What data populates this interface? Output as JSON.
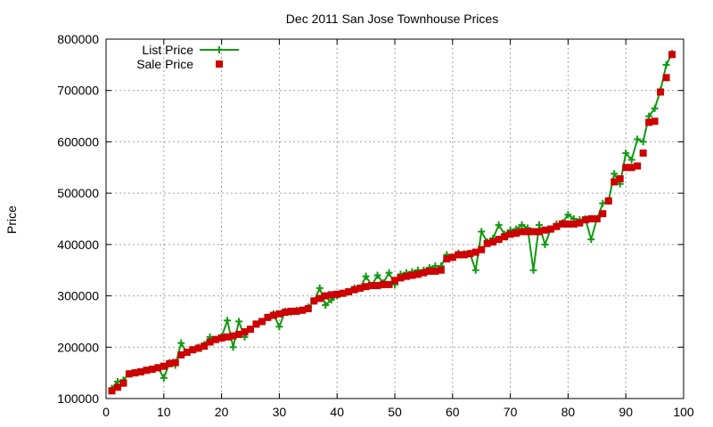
{
  "chart_data": {
    "type": "line",
    "title": "Dec 2011 San Jose Townhouse Prices",
    "xlabel": "",
    "ylabel": "Price",
    "xlim": [
      0,
      100
    ],
    "ylim": [
      100000,
      800000
    ],
    "xticks": [
      0,
      10,
      20,
      30,
      40,
      50,
      60,
      70,
      80,
      90,
      100
    ],
    "yticks": [
      100000,
      200000,
      300000,
      400000,
      500000,
      600000,
      700000,
      800000
    ],
    "grid": true,
    "legend_position": "top-left",
    "series": [
      {
        "name": "List Price",
        "style": "line-with-plus-markers",
        "color": "#119911",
        "x": [
          1,
          2,
          3,
          4,
          5,
          6,
          7,
          8,
          9,
          10,
          11,
          12,
          13,
          14,
          15,
          16,
          17,
          18,
          19,
          20,
          21,
          22,
          23,
          24,
          25,
          26,
          27,
          28,
          29,
          30,
          31,
          32,
          33,
          34,
          35,
          36,
          37,
          38,
          39,
          40,
          41,
          42,
          43,
          44,
          45,
          46,
          47,
          48,
          49,
          50,
          51,
          52,
          53,
          54,
          55,
          56,
          57,
          58,
          59,
          60,
          61,
          62,
          63,
          64,
          65,
          66,
          67,
          68,
          69,
          70,
          71,
          72,
          73,
          74,
          75,
          76,
          77,
          78,
          79,
          80,
          81,
          82,
          83,
          84,
          85,
          86,
          87,
          88,
          89,
          90,
          91,
          92,
          93,
          94,
          95,
          96,
          97,
          98
        ],
        "y": [
          120000,
          133000,
          136000,
          148000,
          150000,
          152000,
          155000,
          157000,
          160000,
          140000,
          170000,
          165000,
          208000,
          190000,
          195000,
          200000,
          205000,
          220000,
          215000,
          220000,
          252000,
          200000,
          250000,
          220000,
          235000,
          245000,
          250000,
          258000,
          265000,
          240000,
          270000,
          268000,
          272000,
          272000,
          278000,
          290000,
          315000,
          282000,
          292000,
          300000,
          305000,
          308000,
          315000,
          315000,
          338000,
          320000,
          340000,
          325000,
          345000,
          322000,
          342000,
          345000,
          347000,
          350000,
          350000,
          355000,
          358000,
          358000,
          380000,
          375000,
          383000,
          382000,
          383000,
          350000,
          425000,
          405000,
          412000,
          438000,
          420000,
          428000,
          430000,
          438000,
          432000,
          350000,
          438000,
          400000,
          430000,
          440000,
          442000,
          458000,
          450000,
          448000,
          450000,
          410000,
          450000,
          480000,
          485000,
          538000,
          518000,
          578000,
          565000,
          605000,
          600000,
          650000,
          665000,
          700000,
          750000,
          772000
        ]
      },
      {
        "name": "Sale Price",
        "style": "square-markers",
        "color": "#cc0000",
        "x": [
          1,
          2,
          3,
          4,
          5,
          6,
          7,
          8,
          9,
          10,
          11,
          12,
          13,
          14,
          15,
          16,
          17,
          18,
          19,
          20,
          21,
          22,
          23,
          24,
          25,
          26,
          27,
          28,
          29,
          30,
          31,
          32,
          33,
          34,
          35,
          36,
          37,
          38,
          39,
          40,
          41,
          42,
          43,
          44,
          45,
          46,
          47,
          48,
          49,
          50,
          51,
          52,
          53,
          54,
          55,
          56,
          57,
          58,
          59,
          60,
          61,
          62,
          63,
          64,
          65,
          66,
          67,
          68,
          69,
          70,
          71,
          72,
          73,
          74,
          75,
          76,
          77,
          78,
          79,
          80,
          81,
          82,
          83,
          84,
          85,
          86,
          87,
          88,
          89,
          90,
          91,
          92,
          93,
          94,
          95,
          96,
          97,
          98
        ],
        "y": [
          115000,
          122000,
          130000,
          148000,
          150000,
          152000,
          155000,
          157000,
          160000,
          163000,
          168000,
          170000,
          185000,
          190000,
          195000,
          198000,
          202000,
          210000,
          215000,
          218000,
          220000,
          222000,
          225000,
          230000,
          235000,
          245000,
          250000,
          258000,
          262000,
          265000,
          268000,
          270000,
          270000,
          272000,
          275000,
          290000,
          295000,
          300000,
          302000,
          303000,
          305000,
          308000,
          312000,
          315000,
          318000,
          320000,
          320000,
          322000,
          322000,
          330000,
          335000,
          338000,
          340000,
          342000,
          345000,
          348000,
          348000,
          350000,
          372000,
          375000,
          380000,
          380000,
          382000,
          385000,
          390000,
          402000,
          405000,
          410000,
          415000,
          420000,
          422000,
          425000,
          425000,
          425000,
          425000,
          428000,
          430000,
          435000,
          440000,
          440000,
          440000,
          442000,
          448000,
          450000,
          450000,
          460000,
          485000,
          522000,
          528000,
          550000,
          550000,
          553000,
          578000,
          638000,
          640000,
          697000,
          725000,
          770000
        ]
      }
    ]
  }
}
